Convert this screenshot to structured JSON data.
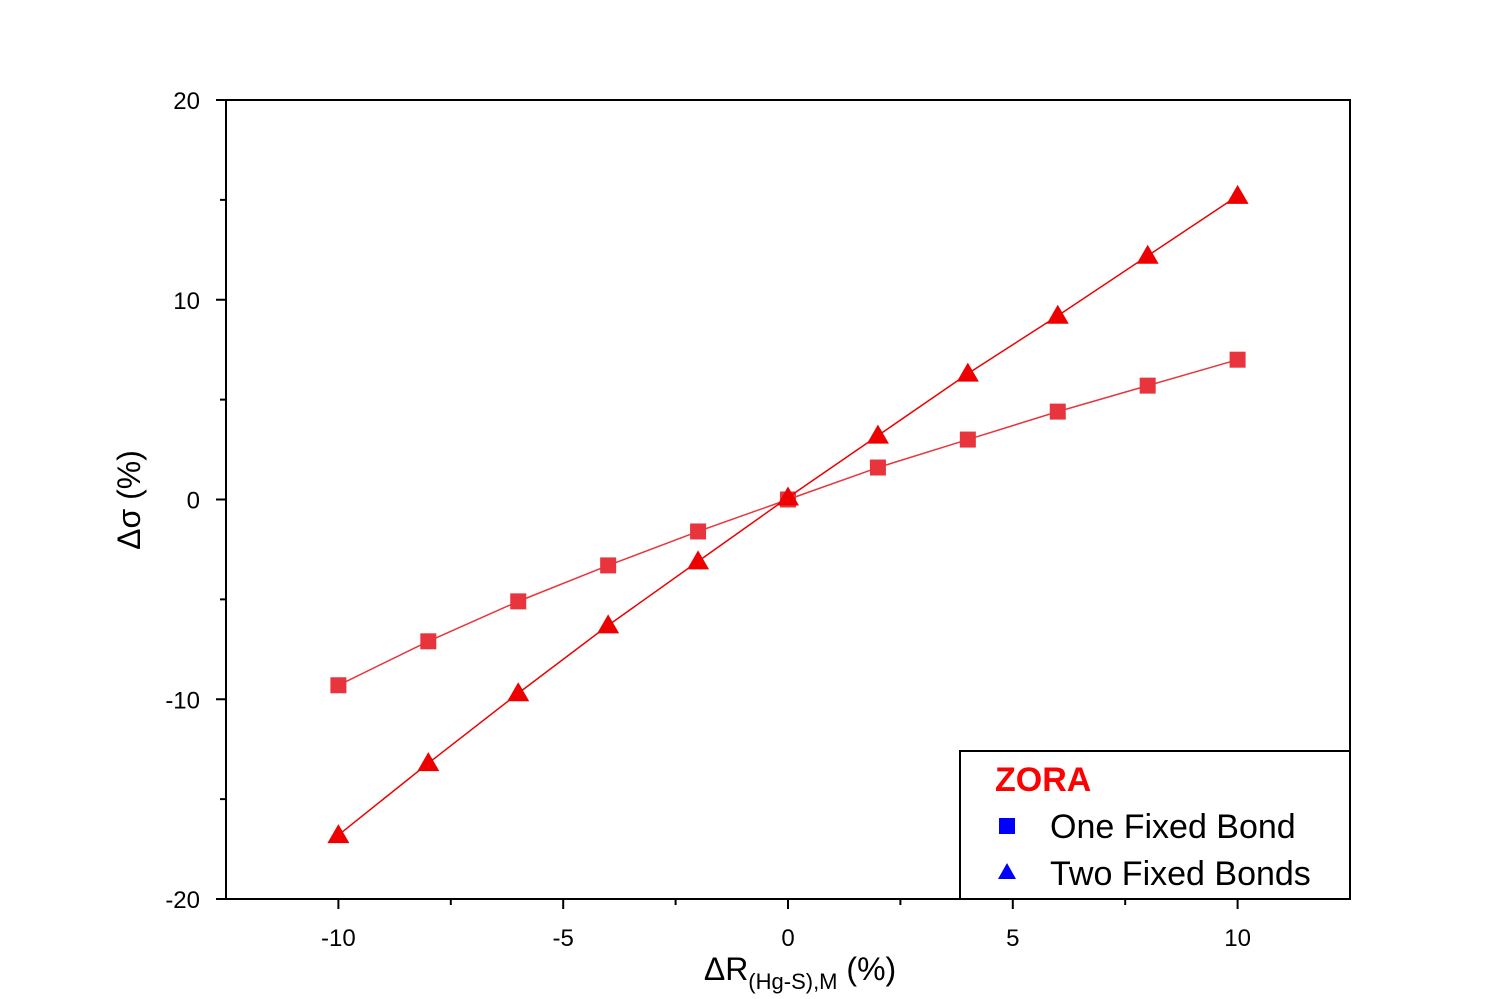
{
  "chart_data": {
    "type": "scatter",
    "title": "",
    "xlabel": "ΔR",
    "xlabel_sub": "(Hg-S),M",
    "xlabel_unit": " (%)",
    "ylabel": "Δσ (%)",
    "xlim": [
      -12.5,
      12.5
    ],
    "ylim": [
      -20,
      20
    ],
    "x_ticks": [
      -10,
      -5,
      0,
      5,
      10
    ],
    "y_ticks": [
      -20,
      -10,
      0,
      10,
      20
    ],
    "grid": false,
    "legend": {
      "placement": "bottom-right",
      "title": "ZORA",
      "title_color": "#ff0000",
      "entries": [
        {
          "label": "One Fixed Bond",
          "marker": "square",
          "color": "#0000ff"
        },
        {
          "label": "Two Fixed Bonds",
          "marker": "triangle",
          "color": "#0000ff"
        }
      ]
    },
    "series": [
      {
        "label": "One Fixed Bond",
        "marker": "square",
        "color": "#e8353d",
        "line_color": "#e8353d",
        "x": [
          -10,
          -8,
          -6,
          -4,
          -2,
          0,
          2,
          4,
          6,
          8,
          10
        ],
        "y": [
          -9.3,
          -7.1,
          -5.1,
          -3.3,
          -1.6,
          0,
          1.6,
          3.0,
          4.4,
          5.7,
          7.0
        ]
      },
      {
        "label": "Two Fixed Bonds",
        "marker": "triangle",
        "color": "#ee0000",
        "line_color": "#ee0000",
        "x": [
          -10,
          -8,
          -6,
          -4,
          -2,
          0,
          2,
          4,
          6,
          8,
          10
        ],
        "y": [
          -16.8,
          -13.2,
          -9.7,
          -6.3,
          -3.1,
          0.1,
          3.2,
          6.3,
          9.2,
          12.2,
          15.2
        ]
      }
    ]
  }
}
